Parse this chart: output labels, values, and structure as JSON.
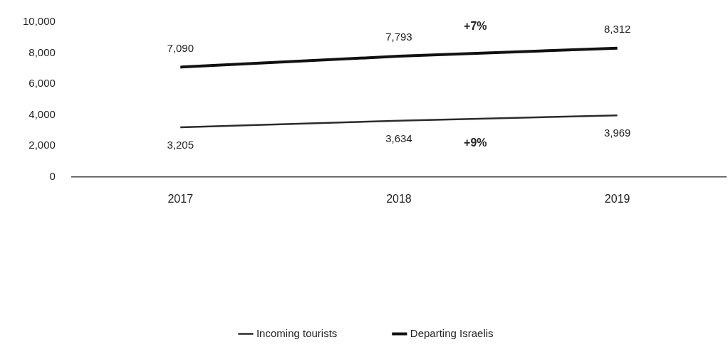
{
  "chart_data": {
    "type": "line",
    "categories": [
      "2017",
      "2018",
      "2019"
    ],
    "series": [
      {
        "name": "Incoming tourists",
        "color": "#2b2b2b",
        "values": [
          3205,
          3634,
          3969
        ],
        "value_labels": [
          "3,205",
          "3,634",
          "3,969"
        ]
      },
      {
        "name": "Departing Israelis",
        "color": "#111111",
        "values": [
          7090,
          7793,
          8312
        ],
        "value_labels": [
          "7,090",
          "7,793",
          "8,312"
        ]
      }
    ],
    "ylim": [
      0,
      10000
    ],
    "yticks": [
      {
        "value": 0,
        "label": "0"
      },
      {
        "value": 2000,
        "label": "2,000"
      },
      {
        "value": 4000,
        "label": "4,000"
      },
      {
        "value": 6000,
        "label": "6,000"
      },
      {
        "value": 8000,
        "label": "8,000"
      },
      {
        "value": 10000,
        "label": "10,000"
      }
    ],
    "annotations": [
      "+9%",
      "+7%"
    ],
    "grid": false,
    "legend": "bottom",
    "marker": "none",
    "line_style": "solid"
  }
}
